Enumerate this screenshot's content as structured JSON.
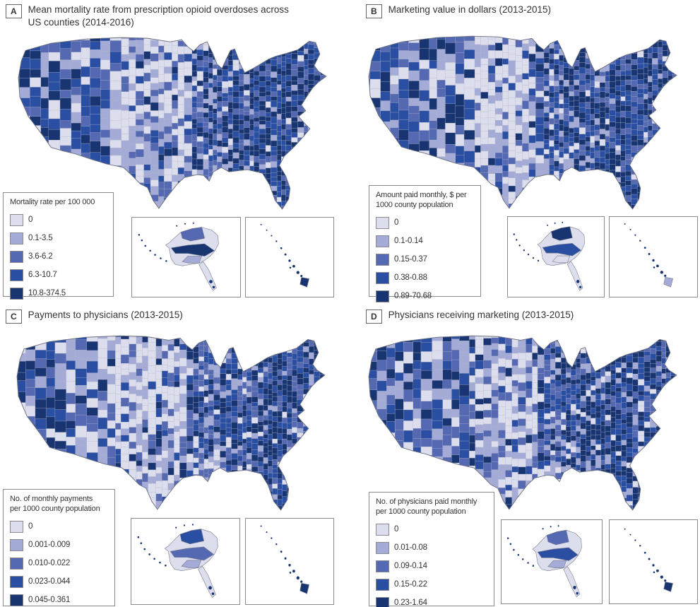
{
  "figure": {
    "palette": [
      "#dcdeee",
      "#a4abd6",
      "#5569b3",
      "#2a4fa2",
      "#183572"
    ],
    "map_line_color": "#6b6f7e",
    "county_line_color": "#b3b6c6",
    "panels": [
      {
        "letter": "A",
        "title": "Mean mortality rate from prescription opioid overdoses across\nUS counties (2014-2016)",
        "legend_title": "Mortality rate per 100 000",
        "classes": [
          "0",
          "0.1-3.5",
          "3.6-6.2",
          "6.3-10.7",
          "10.8-374.5"
        ]
      },
      {
        "letter": "B",
        "title": "Marketing value in dollars (2013-2015)",
        "legend_title": "Amount paid monthly, $ per\n1000 county population",
        "classes": [
          "0",
          "0.1-0.14",
          "0.15-0.37",
          "0.38-0.88",
          "0.89-70.68"
        ]
      },
      {
        "letter": "C",
        "title": "Payments to physicians (2013-2015)",
        "legend_title": "No. of monthly payments\nper 1000 county population",
        "classes": [
          "0",
          "0.001-0.009",
          "0.010-0.022",
          "0.023-0.044",
          "0.045-0.361"
        ]
      },
      {
        "letter": "D",
        "title": "Physicians receiving marketing (2013-2015)",
        "legend_title": "No. of physicians paid monthly\nper 1000 county population",
        "classes": [
          "0",
          "0.01-0.08",
          "0.09-0.14",
          "0.15-0.22",
          "0.23-1.64"
        ]
      }
    ]
  },
  "chart_data": [
    {
      "type": "choropleth",
      "region": "US counties (lower 48 + Alaska + Hawaii insets)",
      "title": "Mean mortality rate from prescription opioid overdoses across US counties (2014-2016)",
      "legend_title": "Mortality rate per 100 000",
      "class_breaks": [
        "0",
        "0.1-3.5",
        "3.6-6.2",
        "6.3-10.7",
        "10.8-374.5"
      ],
      "color_scale": [
        "#dcdeee",
        "#a4abd6",
        "#5569b3",
        "#2a4fa2",
        "#183572"
      ],
      "legend_position": "bottom-left"
    },
    {
      "type": "choropleth",
      "region": "US counties (lower 48 + Alaska + Hawaii insets)",
      "title": "Marketing value in dollars (2013-2015)",
      "legend_title": "Amount paid monthly, $ per 1000 county population",
      "class_breaks": [
        "0",
        "0.1-0.14",
        "0.15-0.37",
        "0.38-0.88",
        "0.89-70.68"
      ],
      "color_scale": [
        "#dcdeee",
        "#a4abd6",
        "#5569b3",
        "#2a4fa2",
        "#183572"
      ],
      "legend_position": "bottom-left"
    },
    {
      "type": "choropleth",
      "region": "US counties (lower 48 + Alaska + Hawaii insets)",
      "title": "Payments to physicians (2013-2015)",
      "legend_title": "No. of monthly payments per 1000 county population",
      "class_breaks": [
        "0",
        "0.001-0.009",
        "0.010-0.022",
        "0.023-0.044",
        "0.045-0.361"
      ],
      "color_scale": [
        "#dcdeee",
        "#a4abd6",
        "#5569b3",
        "#2a4fa2",
        "#183572"
      ],
      "legend_position": "bottom-left"
    },
    {
      "type": "choropleth",
      "region": "US counties (lower 48 + Alaska + Hawaii insets)",
      "title": "Physicians receiving marketing (2013-2015)",
      "legend_title": "No. of physicians paid monthly per 1000 county population",
      "class_breaks": [
        "0",
        "0.01-0.08",
        "0.09-0.14",
        "0.15-0.22",
        "0.23-1.64"
      ],
      "color_scale": [
        "#dcdeee",
        "#a4abd6",
        "#5569b3",
        "#2a4fa2",
        "#183572"
      ],
      "legend_position": "bottom-left"
    }
  ]
}
